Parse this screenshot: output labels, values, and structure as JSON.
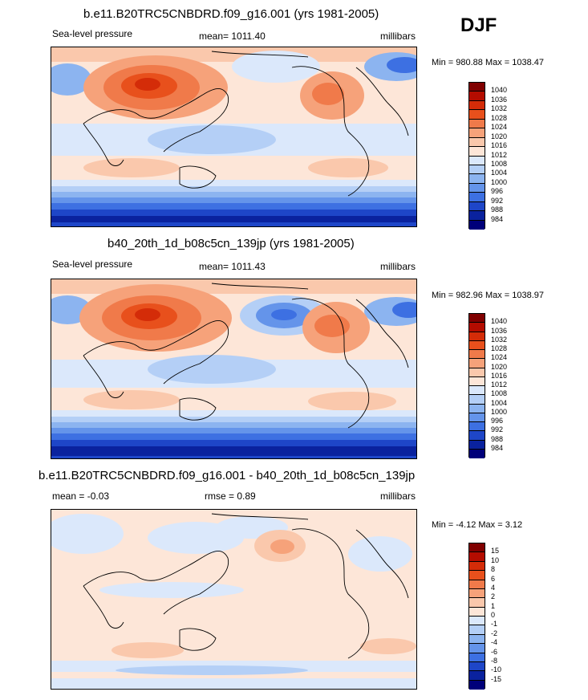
{
  "season_label": "DJF",
  "panels": [
    {
      "title": "b.e11.B20TRC5CNBDRD.f09_g16.001 (yrs 1981-2005)",
      "left_label": "Sea-level pressure",
      "center_label": "mean= 1011.40",
      "right_label": "millibars",
      "minmax": "Min = 980.88 Max = 1038.47",
      "colorbar": {
        "levels": [
          "1040",
          "1036",
          "1032",
          "1028",
          "1024",
          "1020",
          "1016",
          "1012",
          "1008",
          "1004",
          "1000",
          "996",
          "992",
          "988",
          "984"
        ],
        "colors": [
          "#800000",
          "#b40c00",
          "#d42c08",
          "#e8501c",
          "#f07a4a",
          "#f6a27a",
          "#fac8ac",
          "#fde6d8",
          "#dbe8fb",
          "#b4cff6",
          "#8cb4f0",
          "#6494ea",
          "#3d70e2",
          "#1e46c8",
          "#0a229e",
          "#00007a"
        ]
      }
    },
    {
      "title": "b40_20th_1d_b08c5cn_139jp (yrs 1981-2005)",
      "left_label": "Sea-level pressure",
      "center_label": "mean= 1011.43",
      "right_label": "millibars",
      "minmax": "Min = 982.96 Max = 1038.97",
      "colorbar": {
        "levels": [
          "1040",
          "1036",
          "1032",
          "1028",
          "1024",
          "1020",
          "1016",
          "1012",
          "1008",
          "1004",
          "1000",
          "996",
          "992",
          "988",
          "984"
        ],
        "colors": [
          "#800000",
          "#b40c00",
          "#d42c08",
          "#e8501c",
          "#f07a4a",
          "#f6a27a",
          "#fac8ac",
          "#fde6d8",
          "#dbe8fb",
          "#b4cff6",
          "#8cb4f0",
          "#6494ea",
          "#3d70e2",
          "#1e46c8",
          "#0a229e",
          "#00007a"
        ]
      }
    },
    {
      "title": "b.e11.B20TRC5CNBDRD.f09_g16.001 - b40_20th_1d_b08c5cn_139jp",
      "left_label": "mean =  -0.03",
      "center_label": "rmse =   0.89",
      "right_label": "millibars",
      "minmax": "Min =  -4.12 Max =   3.12",
      "colorbar": {
        "levels": [
          "15",
          "10",
          "8",
          "6",
          "4",
          "2",
          "1",
          "0",
          "-1",
          "-2",
          "-4",
          "-6",
          "-8",
          "-10",
          "-15"
        ],
        "colors": [
          "#800000",
          "#b40c00",
          "#d42c08",
          "#e8501c",
          "#f07a4a",
          "#f6a27a",
          "#fac8ac",
          "#fde6d8",
          "#dbe8fb",
          "#b4cff6",
          "#8cb4f0",
          "#6494ea",
          "#3d70e2",
          "#1e46c8",
          "#0a229e",
          "#00007a"
        ]
      }
    }
  ]
}
